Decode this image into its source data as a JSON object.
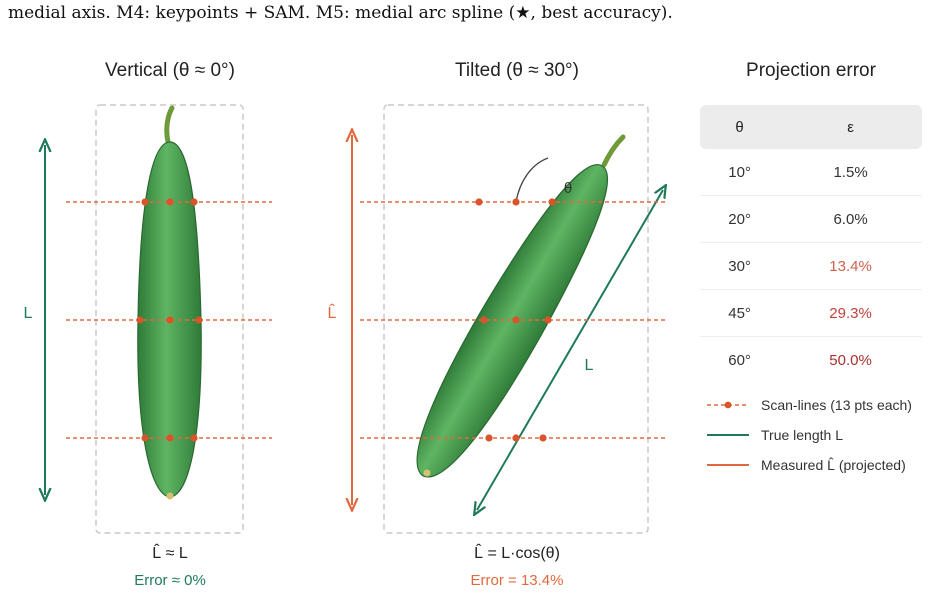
{
  "caption": "medial axis. M4: keypoints + SAM. M5: medial arc spline (★, best accuracy).",
  "left_panel": {
    "title": "Vertical (θ ≈ 0°)",
    "length_label": "L",
    "formula": "L̂ ≈ L",
    "error": "Error ≈ 0%",
    "color": "#1f7a5c"
  },
  "right_panel": {
    "title": "Tilted (θ ≈ 30°)",
    "length_label": "L̂",
    "diag_label": "L",
    "angle_label": "θ",
    "formula": "L̂ = L·cos(θ)",
    "error": "Error = 13.4%",
    "color": "#e06a3f"
  },
  "table": {
    "title": "Projection error",
    "headers": [
      "θ",
      "ε"
    ],
    "rows": [
      {
        "theta": "10°",
        "eps": "1.5%",
        "color": "#333333"
      },
      {
        "theta": "20°",
        "eps": "6.0%",
        "color": "#333333"
      },
      {
        "theta": "30°",
        "eps": "13.4%",
        "color": "#d0604a"
      },
      {
        "theta": "45°",
        "eps": "29.3%",
        "color": "#c2403a"
      },
      {
        "theta": "60°",
        "eps": "50.0%",
        "color": "#a8322c"
      }
    ]
  },
  "legend": [
    {
      "label": "Scan-lines (13 pts each)",
      "kind": "scan"
    },
    {
      "label": "True length L",
      "kind": "true"
    },
    {
      "label": "Measured L̂ (projected)",
      "kind": "measured"
    }
  ],
  "colors": {
    "teal": "#1f7a5c",
    "orange": "#e06a3f",
    "cucumber": "#4a9e4e",
    "cucumber_dark": "#2e6e36",
    "stem": "#7a9a3a",
    "box": "#c8c8c8"
  }
}
